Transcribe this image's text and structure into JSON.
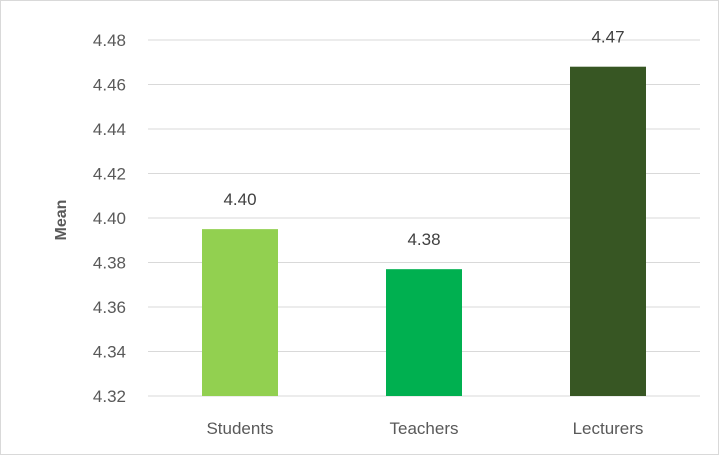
{
  "chart_data": {
    "type": "bar",
    "title": "",
    "xlabel": "",
    "ylabel": "Mean",
    "categories": [
      "Students",
      "Teachers",
      "Lecturers"
    ],
    "values": [
      4.395,
      4.377,
      4.468
    ],
    "data_labels": [
      "4.40",
      "4.38",
      "4.47"
    ],
    "bar_colors": [
      "#92d050",
      "#00b050",
      "#375623"
    ],
    "ylim": [
      4.32,
      4.48
    ],
    "y_ticks": [
      4.32,
      4.34,
      4.36,
      4.38,
      4.4,
      4.42,
      4.44,
      4.46,
      4.48
    ],
    "y_tick_labels": [
      "4.32",
      "4.34",
      "4.36",
      "4.38",
      "4.40",
      "4.42",
      "4.44",
      "4.46",
      "4.48"
    ],
    "grid": true,
    "gridline_color": "#d9d9d9",
    "legend": "none"
  }
}
